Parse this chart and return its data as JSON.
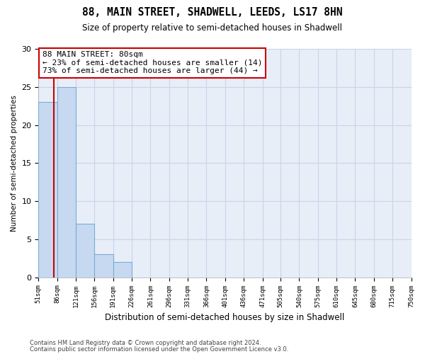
{
  "title": "88, MAIN STREET, SHADWELL, LEEDS, LS17 8HN",
  "subtitle": "Size of property relative to semi-detached houses in Shadwell",
  "xlabel": "Distribution of semi-detached houses by size in Shadwell",
  "ylabel": "Number of semi-detached properties",
  "annotation_title": "88 MAIN STREET: 80sqm",
  "annotation_line1": "← 23% of semi-detached houses are smaller (14)",
  "annotation_line2": "73% of semi-detached houses are larger (44) →",
  "footer_line1": "Contains HM Land Registry data © Crown copyright and database right 2024.",
  "footer_line2": "Contains public sector information licensed under the Open Government Licence v3.0.",
  "bins": [
    51,
    86,
    121,
    156,
    191,
    226,
    261,
    296,
    331,
    366,
    401,
    436,
    471,
    505,
    540,
    575,
    610,
    645,
    680,
    715,
    750
  ],
  "counts": [
    23,
    25,
    7,
    3,
    2,
    0,
    0,
    0,
    0,
    0,
    0,
    0,
    0,
    0,
    0,
    0,
    0,
    0,
    0,
    0
  ],
  "property_value": 80,
  "bar_color": "#c6d9f1",
  "bar_edge_color": "#7bacd4",
  "vline_color": "#cc0000",
  "annotation_box_color": "#ffffff",
  "annotation_box_edge": "#cc0000",
  "grid_color": "#c8d4e8",
  "background_color": "#ffffff",
  "plot_bg_color": "#e8eef8",
  "ylim": [
    0,
    30
  ],
  "yticks": [
    0,
    5,
    10,
    15,
    20,
    25,
    30
  ]
}
